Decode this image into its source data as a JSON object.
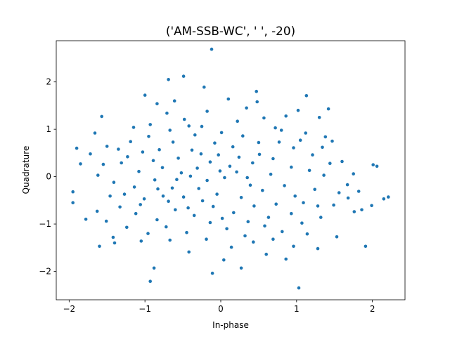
{
  "chart_data": {
    "type": "scatter",
    "title": "('AM-SSB-WC', '  ', -20)",
    "xlabel": "In-phase",
    "ylabel": "Quadrature",
    "xlim": [
      -2.17,
      2.43
    ],
    "ylim": [
      -2.6,
      2.87
    ],
    "xticks": [
      -2,
      -1,
      0,
      1,
      2
    ],
    "yticks": [
      -2,
      -1,
      0,
      1,
      2
    ],
    "grid": false,
    "marker_color": "#1f77b4",
    "series": [
      {
        "values": [
          [
            -0.12,
            2.69
          ],
          [
            -0.49,
            2.12
          ],
          [
            -0.69,
            2.05
          ],
          [
            -0.22,
            1.89
          ],
          [
            0.47,
            1.8
          ],
          [
            -1.0,
            1.72
          ],
          [
            1.13,
            1.71
          ],
          [
            0.1,
            1.64
          ],
          [
            -0.61,
            1.6
          ],
          [
            0.48,
            1.58
          ],
          [
            -0.84,
            1.54
          ],
          [
            1.42,
            1.43
          ],
          [
            -1.57,
            1.27
          ],
          [
            -0.71,
            1.34
          ],
          [
            -0.18,
            1.38
          ],
          [
            0.34,
            1.45
          ],
          [
            -1.9,
            0.6
          ],
          [
            -1.95,
            -0.32
          ],
          [
            -1.95,
            -0.55
          ],
          [
            -1.78,
            -0.9
          ],
          [
            -1.63,
            -0.73
          ],
          [
            -1.6,
            -1.47
          ],
          [
            -1.42,
            -1.28
          ],
          [
            -1.4,
            -1.4
          ],
          [
            -1.05,
            -1.36
          ],
          [
            -0.93,
            -2.21
          ],
          [
            -0.88,
            -1.93
          ],
          [
            -0.67,
            -1.34
          ],
          [
            -0.42,
            -1.59
          ],
          [
            -0.11,
            -2.04
          ],
          [
            0.27,
            -1.93
          ],
          [
            0.04,
            -1.76
          ],
          [
            0.6,
            -1.64
          ],
          [
            0.86,
            -1.74
          ],
          [
            1.03,
            -2.35
          ],
          [
            1.28,
            -1.52
          ],
          [
            1.53,
            -1.27
          ],
          [
            1.91,
            -1.47
          ],
          [
            1.76,
            -0.74
          ],
          [
            1.86,
            -0.7
          ],
          [
            1.68,
            -0.45
          ],
          [
            1.99,
            -0.61
          ],
          [
            2.06,
            0.22
          ],
          [
            2.01,
            0.25
          ],
          [
            2.15,
            -0.47
          ],
          [
            2.21,
            -0.43
          ],
          [
            1.6,
            0.32
          ],
          [
            1.67,
            -0.17
          ],
          [
            1.75,
            0.06
          ],
          [
            1.82,
            -0.31
          ],
          [
            1.38,
            0.84
          ],
          [
            1.3,
            1.25
          ],
          [
            1.47,
            0.75
          ],
          [
            -1.85,
            0.27
          ],
          [
            -1.72,
            0.48
          ],
          [
            -1.66,
            0.92
          ],
          [
            -1.5,
            0.64
          ],
          [
            -1.35,
            0.58
          ],
          [
            -1.23,
            0.42
          ],
          [
            -1.15,
            1.04
          ],
          [
            -0.93,
            1.1
          ],
          [
            -0.42,
            1.07
          ],
          [
            0.72,
            1.03
          ],
          [
            1.02,
            1.4
          ],
          [
            0.8,
            0.98
          ],
          [
            0.22,
            1.17
          ],
          [
            0.5,
            0.72
          ],
          [
            -0.34,
            0.88
          ],
          [
            -0.03,
            0.46
          ],
          [
            0.16,
            0.63
          ],
          [
            -0.26,
            0.48
          ],
          [
            -0.56,
            0.39
          ],
          [
            -0.81,
            0.57
          ],
          [
            -1.03,
            0.52
          ],
          [
            -1.31,
            0.29
          ],
          [
            -1.55,
            0.26
          ],
          [
            -1.62,
            0.03
          ],
          [
            -1.41,
            -0.12
          ],
          [
            -1.14,
            -0.22
          ],
          [
            -0.87,
            -0.07
          ],
          [
            -0.64,
            -0.24
          ],
          [
            -0.4,
            0.01
          ],
          [
            -0.18,
            -0.08
          ],
          [
            0.05,
            -0.02
          ],
          [
            0.21,
            0.1
          ],
          [
            0.39,
            -0.18
          ],
          [
            0.66,
            0.05
          ],
          [
            0.93,
            0.2
          ],
          [
            1.17,
            0.13
          ],
          [
            1.36,
            0.03
          ],
          [
            1.24,
            -0.27
          ],
          [
            0.98,
            -0.41
          ],
          [
            0.73,
            -0.58
          ],
          [
            0.44,
            -0.62
          ],
          [
            0.17,
            -0.76
          ],
          [
            -0.1,
            -0.63
          ],
          [
            -0.35,
            -0.82
          ],
          [
            -0.6,
            -0.7
          ],
          [
            -0.84,
            -0.91
          ],
          [
            -1.12,
            -0.78
          ],
          [
            -1.33,
            -0.64
          ],
          [
            -1.51,
            -0.94
          ],
          [
            -1.24,
            -1.07
          ],
          [
            -0.96,
            -1.2
          ],
          [
            -0.72,
            -1.06
          ],
          [
            -0.45,
            -1.18
          ],
          [
            -0.19,
            -1.32
          ],
          [
            0.08,
            -1.1
          ],
          [
            0.32,
            -1.25
          ],
          [
            0.58,
            -1.04
          ],
          [
            0.81,
            -1.16
          ],
          [
            1.07,
            -0.98
          ],
          [
            1.32,
            -0.86
          ],
          [
            1.49,
            -0.6
          ],
          [
            1.56,
            -0.34
          ],
          [
            1.44,
            0.28
          ],
          [
            1.21,
            0.46
          ],
          [
            0.96,
            0.61
          ],
          [
            0.69,
            0.38
          ],
          [
            0.42,
            0.29
          ],
          [
            0.12,
            0.22
          ],
          [
            -0.14,
            0.31
          ],
          [
            -0.38,
            0.56
          ],
          [
            -0.63,
            0.73
          ],
          [
            -0.89,
            0.34
          ],
          [
            -1.08,
            0.11
          ],
          [
            -0.77,
            0.19
          ],
          [
            -0.52,
            0.08
          ],
          [
            -0.29,
            -0.25
          ],
          [
            -0.05,
            -0.37
          ],
          [
            0.27,
            -0.44
          ],
          [
            0.55,
            -0.29
          ],
          [
            0.84,
            -0.19
          ],
          [
            1.09,
            -0.55
          ],
          [
            1.28,
            -0.62
          ],
          [
            0.93,
            -0.78
          ],
          [
            0.63,
            -0.86
          ],
          [
            0.36,
            -0.95
          ],
          [
            0.02,
            -0.88
          ],
          [
            -0.24,
            -0.51
          ],
          [
            -0.49,
            -0.43
          ],
          [
            -0.76,
            -0.41
          ],
          [
            -1.01,
            -0.47
          ],
          [
            -1.27,
            -0.37
          ],
          [
            -1.46,
            -0.41
          ],
          [
            -1.19,
            0.74
          ],
          [
            -0.95,
            0.85
          ],
          [
            -0.67,
            0.98
          ],
          [
            -0.48,
            1.21
          ],
          [
            -0.25,
            1.06
          ],
          [
            0.01,
            0.93
          ],
          [
            0.29,
            0.86
          ],
          [
            0.57,
            1.24
          ],
          [
            0.86,
            1.28
          ],
          [
            1.12,
            0.92
          ],
          [
            1.34,
            0.62
          ],
          [
            1.05,
            0.77
          ],
          [
            0.77,
            0.73
          ],
          [
            0.51,
            0.47
          ],
          [
            0.24,
            0.41
          ],
          [
            -0.01,
            0.12
          ],
          [
            -0.31,
            0.18
          ],
          [
            -0.58,
            -0.06
          ],
          [
            -0.83,
            -0.26
          ],
          [
            -1.06,
            -0.59
          ],
          [
            -0.69,
            -0.52
          ],
          [
            -0.43,
            -0.66
          ],
          [
            -0.14,
            -0.97
          ],
          [
            0.14,
            -1.49
          ],
          [
            0.43,
            -1.38
          ],
          [
            0.69,
            -1.32
          ],
          [
            0.96,
            -1.47
          ],
          [
            1.14,
            -1.21
          ],
          [
            0.35,
            -0.02
          ],
          [
            -0.08,
            0.71
          ]
        ]
      }
    ]
  }
}
